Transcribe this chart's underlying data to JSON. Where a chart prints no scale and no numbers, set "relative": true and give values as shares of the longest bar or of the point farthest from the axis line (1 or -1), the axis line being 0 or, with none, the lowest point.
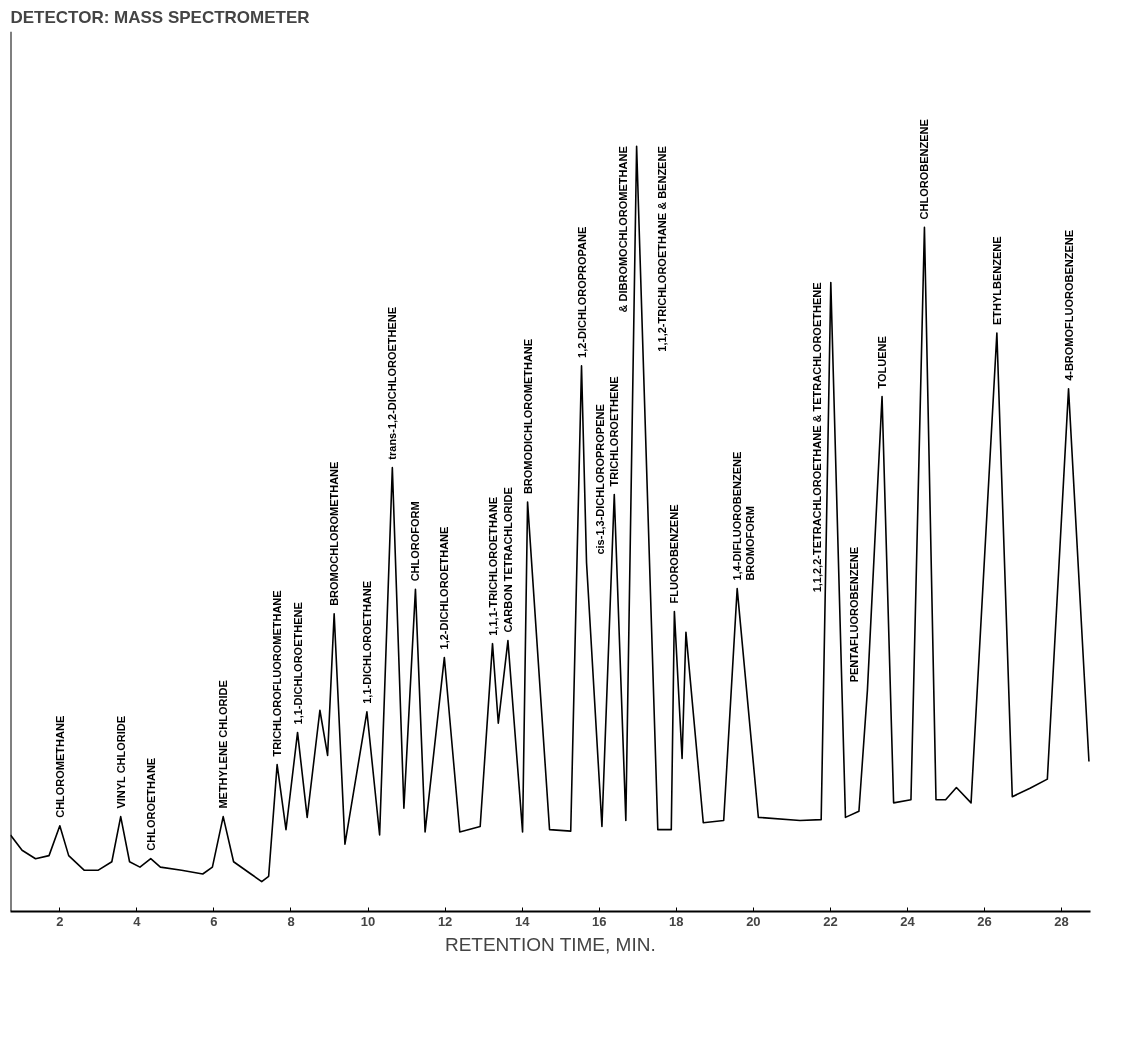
{
  "chart_data": {
    "type": "line",
    "title": "DETECTOR: MASS SPECTROMETER",
    "xlabel": "RETENTION TIME, MIN.",
    "relative": true,
    "xlim": [
      0.72,
      28.75
    ],
    "xticks": [
      2,
      4,
      6,
      8,
      10,
      12,
      14,
      16,
      18,
      20,
      22,
      24,
      26,
      28
    ],
    "series": [
      {
        "color": "#000000",
        "x": [
          0.72,
          1.02,
          1.37,
          1.72,
          2.0,
          2.23,
          2.63,
          3.0,
          3.35,
          3.58,
          3.81,
          4.08,
          4.36,
          4.61,
          5.16,
          5.71,
          5.96,
          6.24,
          6.51,
          6.96,
          7.24,
          7.42,
          7.64,
          7.87,
          8.17,
          8.42,
          8.75,
          8.95,
          9.12,
          9.4,
          9.97,
          10.3,
          10.63,
          10.93,
          11.23,
          11.48,
          11.98,
          12.38,
          12.91,
          13.23,
          13.38,
          13.63,
          14.01,
          14.14,
          14.71,
          15.26,
          15.54,
          15.67,
          16.07,
          16.39,
          16.69,
          16.97,
          17.52,
          17.87,
          17.95,
          18.15,
          18.25,
          18.7,
          19.23,
          19.58,
          20.13,
          21.21,
          21.76,
          22.01,
          22.39,
          22.74,
          22.96,
          23.34,
          23.64,
          24.09,
          24.44,
          24.74,
          24.99,
          25.27,
          25.65,
          26.32,
          26.72,
          27.18,
          27.63,
          28.18,
          28.71
        ],
        "values": [
          0.1,
          0.08,
          0.069,
          0.073,
          0.112,
          0.073,
          0.054,
          0.054,
          0.065,
          0.124,
          0.065,
          0.058,
          0.069,
          0.058,
          0.054,
          0.049,
          0.058,
          0.124,
          0.065,
          0.049,
          0.039,
          0.046,
          0.192,
          0.107,
          0.234,
          0.123,
          0.263,
          0.204,
          0.389,
          0.088,
          0.261,
          0.1,
          0.58,
          0.135,
          0.421,
          0.104,
          0.332,
          0.104,
          0.111,
          0.35,
          0.246,
          0.354,
          0.104,
          0.535,
          0.107,
          0.105,
          0.713,
          0.456,
          0.111,
          0.545,
          0.119,
          1.0,
          0.107,
          0.107,
          0.392,
          0.2,
          0.365,
          0.116,
          0.119,
          0.422,
          0.123,
          0.119,
          0.12,
          0.822,
          0.123,
          0.131,
          0.289,
          0.673,
          0.142,
          0.146,
          0.894,
          0.146,
          0.146,
          0.162,
          0.142,
          0.756,
          0.15,
          0.161,
          0.173,
          0.683,
          0.196
        ]
      }
    ],
    "annotations": [
      {
        "text": "CHLOROMETHANE",
        "x": 2.0,
        "y": 0.112
      },
      {
        "text": "VINYL CHLORIDE",
        "x": 3.58,
        "y": 0.124
      },
      {
        "text": "CHLOROETHANE",
        "x": 4.36,
        "y": 0.069
      },
      {
        "text": "METHYLENE CHLORIDE",
        "x": 6.24,
        "y": 0.124
      },
      {
        "text": "TRICHLOROFLUOROMETHANE",
        "x": 7.64,
        "y": 0.192
      },
      {
        "text": "1,1-DICHLOROETHENE",
        "x": 8.17,
        "y": 0.234
      },
      {
        "text": "BROMOCHLOROMETHANE",
        "x": 9.12,
        "y": 0.389
      },
      {
        "text": "1,1-DICHLOROETHANE",
        "x": 9.97,
        "y": 0.261
      },
      {
        "text": "trans-1,2-DICHLOROETHENE",
        "x": 10.63,
        "y": 0.58
      },
      {
        "text": "CHLOROFORM",
        "x": 11.23,
        "y": 0.421
      },
      {
        "text": "1,2-DICHLOROETHANE",
        "x": 11.98,
        "y": 0.332
      },
      {
        "text": "1,1,1-TRICHLOROETHANE",
        "x": 13.23,
        "y": 0.35
      },
      {
        "text": "CARBON TETRACHLORIDE",
        "x": 13.63,
        "y": 0.354
      },
      {
        "text": "BROMODICHLOROMETHANE",
        "x": 14.14,
        "y": 0.535
      },
      {
        "text": "1,2-DICHLOROPROPANE",
        "x": 15.54,
        "y": 0.713
      },
      {
        "text": "cis-1,3-DICHLOROPROPENE",
        "x": 15.67,
        "y": 0.456
      },
      {
        "text": "TRICHLOROETHENE",
        "x": 16.39,
        "y": 0.545
      },
      {
        "text": "1,1,2-TRICHLOROETHANE & BENZENE",
        "x": 16.97,
        "y": 1.0
      },
      {
        "text": "& DIBROMOCHLOROMETHANE",
        "x": 16.97,
        "y": 1.0
      },
      {
        "text": "FLUOROBENZENE",
        "x": 17.95,
        "y": 0.392
      },
      {
        "text": "1,4-DIFLUOROBENZENE",
        "x": 19.58,
        "y": 0.422
      },
      {
        "text": "BROMOFORM",
        "x": 19.58,
        "y": 0.422
      },
      {
        "text": "1,1,2,2-TETRACHLOROETHANE & TETRACHLOROETHENE",
        "x": 22.01,
        "y": 0.822
      },
      {
        "text": "PENTAFLUOROBENZENE",
        "x": 22.96,
        "y": 0.289
      },
      {
        "text": "TOLUENE",
        "x": 23.34,
        "y": 0.673
      },
      {
        "text": "CHLOROBENZENE",
        "x": 24.44,
        "y": 0.894
      },
      {
        "text": "ETHYLBENZENE",
        "x": 26.32,
        "y": 0.756
      },
      {
        "text": "4-BROMOFLUOROBENZENE",
        "x": 28.18,
        "y": 0.683
      }
    ]
  }
}
